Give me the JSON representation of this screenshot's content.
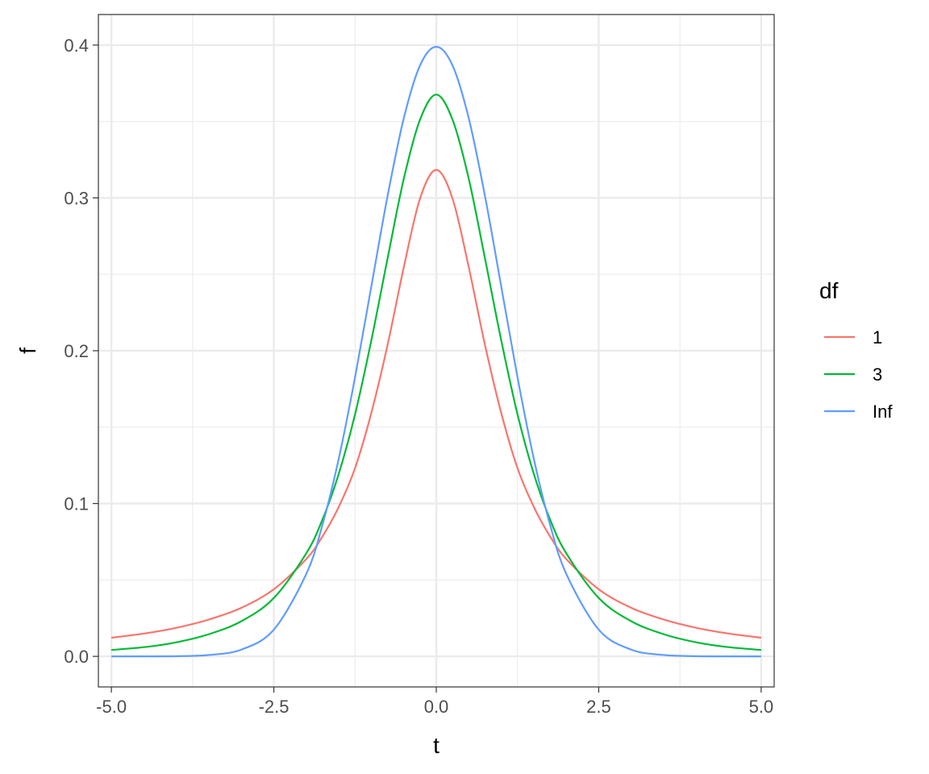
{
  "chart_data": {
    "type": "line",
    "title": "",
    "xlabel": "t",
    "ylabel": "f",
    "xlim": [
      -5.2,
      5.2
    ],
    "ylim": [
      -0.02,
      0.42
    ],
    "x_ticks": [
      -5.0,
      -2.5,
      0.0,
      2.5,
      5.0
    ],
    "x_tick_labels": [
      "-5.0",
      "-2.5",
      "0.0",
      "2.5",
      "5.0"
    ],
    "y_ticks": [
      0.0,
      0.1,
      0.2,
      0.3,
      0.4
    ],
    "y_tick_labels": [
      "0.0",
      "0.1",
      "0.2",
      "0.3",
      "0.4"
    ],
    "grid": true,
    "legend": {
      "title": "df",
      "placement": "right"
    },
    "x": [
      -5.0,
      -4.5,
      -4.0,
      -3.5,
      -3.0,
      -2.5,
      -2.0,
      -1.75,
      -1.5,
      -1.25,
      -1.0,
      -0.75,
      -0.5,
      -0.25,
      0.0,
      0.25,
      0.5,
      0.75,
      1.0,
      1.25,
      1.5,
      1.75,
      2.0,
      2.5,
      3.0,
      3.5,
      4.0,
      4.5,
      5.0
    ],
    "series": [
      {
        "name": "1",
        "color": "#F8766D",
        "values": [
          0.0122,
          0.0149,
          0.0187,
          0.0241,
          0.0318,
          0.0439,
          0.0637,
          0.0786,
          0.0979,
          0.1232,
          0.1592,
          0.2037,
          0.2546,
          0.2996,
          0.3183,
          0.2996,
          0.2546,
          0.2037,
          0.1592,
          0.1232,
          0.0979,
          0.0786,
          0.0637,
          0.0439,
          0.0318,
          0.0241,
          0.0187,
          0.0149,
          0.0122
        ]
      },
      {
        "name": "3",
        "color": "#00BA38",
        "values": [
          0.0042,
          0.006,
          0.0092,
          0.0145,
          0.023,
          0.0382,
          0.0675,
          0.0897,
          0.1196,
          0.1584,
          0.2067,
          0.2603,
          0.3125,
          0.3512,
          0.3676,
          0.3512,
          0.3125,
          0.2603,
          0.2067,
          0.1584,
          0.1196,
          0.0897,
          0.0675,
          0.0382,
          0.023,
          0.0145,
          0.0092,
          0.006,
          0.0042
        ]
      },
      {
        "name": "Inf",
        "color": "#619CFF",
        "values": [
          0.0,
          0.0,
          0.0001,
          0.0009,
          0.0044,
          0.0175,
          0.054,
          0.0863,
          0.1295,
          0.1826,
          0.242,
          0.3011,
          0.3521,
          0.3867,
          0.3989,
          0.3867,
          0.3521,
          0.3011,
          0.242,
          0.1826,
          0.1295,
          0.0863,
          0.054,
          0.0175,
          0.0044,
          0.0009,
          0.0001,
          0.0,
          0.0
        ]
      }
    ]
  }
}
